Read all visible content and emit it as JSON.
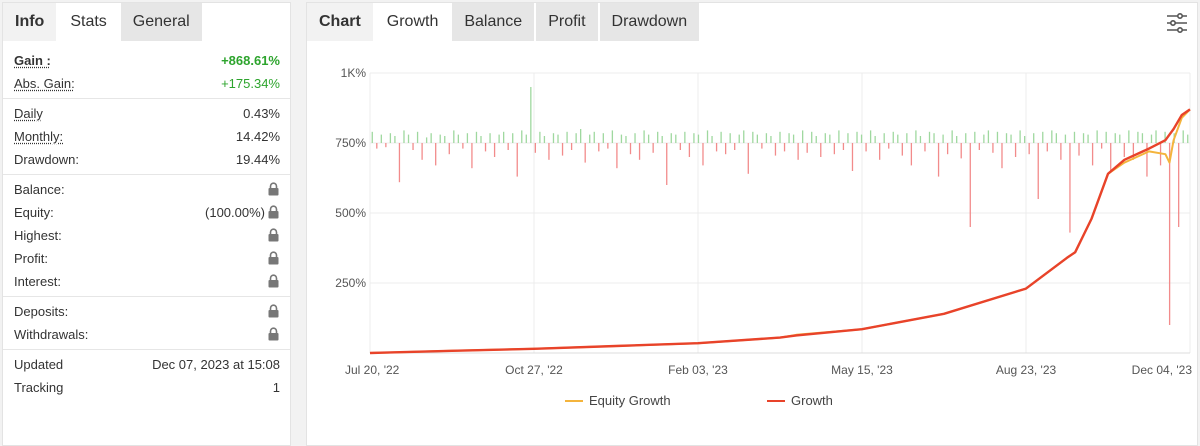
{
  "left": {
    "tabs": [
      {
        "label": "Info",
        "state": "plain"
      },
      {
        "label": "Stats",
        "state": "active"
      },
      {
        "label": "General",
        "state": "normal"
      }
    ],
    "gain": {
      "label": "Gain :",
      "value": "+868.61%"
    },
    "abs_gain": {
      "label": "Abs. Gain:",
      "value": "+175.34%"
    },
    "daily": {
      "label": "Daily",
      "value": "0.43%"
    },
    "monthly": {
      "label": "Monthly:",
      "value": "14.42%"
    },
    "drawdown": {
      "label": "Drawdown:",
      "value": "19.44%"
    },
    "balance": {
      "label": "Balance:"
    },
    "equity": {
      "label": "Equity:",
      "value": "(100.00%)"
    },
    "highest": {
      "label": "Highest:"
    },
    "profit": {
      "label": "Profit:"
    },
    "interest": {
      "label": "Interest:"
    },
    "deposits": {
      "label": "Deposits:"
    },
    "withdrawals": {
      "label": "Withdrawals:"
    },
    "updated": {
      "label": "Updated",
      "value": "Dec 07, 2023 at 15:08"
    },
    "tracking": {
      "label": "Tracking",
      "value": "1"
    }
  },
  "right": {
    "tabs": [
      {
        "label": "Chart",
        "state": "plain"
      },
      {
        "label": "Growth",
        "state": "active"
      },
      {
        "label": "Balance",
        "state": "normal"
      },
      {
        "label": "Profit",
        "state": "normal"
      },
      {
        "label": "Drawdown",
        "state": "normal"
      }
    ],
    "settings_icon": "sliders-icon"
  },
  "colors": {
    "green_text": "#2da42d",
    "growth_line": "#e8432a",
    "equity_line": "#f4b43c",
    "positive_bar": "#9fd89f",
    "negative_bar": "#f28b8b"
  },
  "chart_data": {
    "type": "line",
    "title": "",
    "xlabel": "",
    "ylabel": "",
    "y_ticks": [
      "250%",
      "500%",
      "750%",
      "1K%"
    ],
    "y_tick_values": [
      250,
      500,
      750,
      1000
    ],
    "ylim": [
      0,
      1000
    ],
    "x_ticks": [
      "Jul 20, '22",
      "Oct 27, '22",
      "Feb 03, '23",
      "May 15, '23",
      "Aug 23, '23",
      "Dec 04, '23"
    ],
    "grid": true,
    "legend_position": "bottom",
    "series": [
      {
        "name": "Equity Growth",
        "color": "#f4b43c",
        "x": [
          0,
          0.1,
          0.2,
          0.3,
          0.4,
          0.5,
          0.52,
          0.6,
          0.7,
          0.8,
          0.85,
          0.86,
          0.87,
          0.88,
          0.89,
          0.9,
          0.92,
          0.95,
          0.97,
          0.975,
          0.98,
          0.99,
          1.0
        ],
        "values": [
          0,
          8,
          15,
          25,
          35,
          55,
          65,
          85,
          140,
          230,
          340,
          360,
          420,
          480,
          560,
          640,
          680,
          720,
          710,
          680,
          760,
          840,
          870
        ]
      },
      {
        "name": "Growth",
        "color": "#e8432a",
        "x": [
          0,
          0.1,
          0.2,
          0.3,
          0.4,
          0.5,
          0.52,
          0.6,
          0.7,
          0.8,
          0.85,
          0.86,
          0.87,
          0.88,
          0.89,
          0.9,
          0.92,
          0.95,
          0.97,
          0.975,
          0.98,
          0.99,
          1.0
        ],
        "values": [
          0,
          8,
          15,
          25,
          35,
          55,
          63,
          85,
          140,
          230,
          340,
          360,
          420,
          480,
          560,
          640,
          690,
          730,
          760,
          780,
          800,
          850,
          870
        ]
      }
    ],
    "daily_changes": {
      "baseline": 750,
      "positive_color": "#9fd89f",
      "negative_color": "#f28b8b",
      "values": [
        40,
        -20,
        30,
        -15,
        35,
        25,
        -140,
        45,
        30,
        -25,
        40,
        -60,
        20,
        35,
        -80,
        30,
        25,
        -40,
        45,
        30,
        -20,
        35,
        -90,
        40,
        25,
        -30,
        35,
        -50,
        30,
        40,
        -25,
        35,
        -120,
        45,
        30,
        200,
        -35,
        40,
        25,
        -60,
        35,
        30,
        -45,
        40,
        -25,
        35,
        50,
        -70,
        30,
        40,
        -30,
        35,
        -20,
        45,
        -90,
        30,
        25,
        -40,
        35,
        -60,
        45,
        30,
        -35,
        40,
        25,
        -150,
        35,
        30,
        -25,
        40,
        -50,
        35,
        30,
        -80,
        45,
        25,
        -30,
        40,
        -40,
        35,
        -25,
        30,
        45,
        -110,
        40,
        30,
        -20,
        35,
        25,
        -45,
        40,
        -30,
        35,
        30,
        -60,
        45,
        -35,
        40,
        25,
        -50,
        35,
        30,
        -40,
        45,
        -25,
        35,
        -100,
        40,
        30,
        -30,
        45,
        25,
        -60,
        35,
        -20,
        40,
        30,
        -45,
        35,
        -80,
        45,
        25,
        -30,
        40,
        35,
        -120,
        30,
        -40,
        45,
        25,
        -55,
        35,
        -300,
        40,
        -25,
        30,
        45,
        -35,
        40,
        -90,
        35,
        30,
        -50,
        45,
        25,
        -40,
        35,
        -200,
        40,
        -30,
        45,
        35,
        -60,
        30,
        -320,
        40,
        -45,
        35,
        30,
        -80,
        45,
        -20,
        40,
        -100,
        35,
        30,
        -50,
        45,
        -60,
        40,
        35,
        -120,
        30,
        45,
        -80,
        40,
        -650,
        35,
        -300,
        45,
        30
      ]
    }
  }
}
